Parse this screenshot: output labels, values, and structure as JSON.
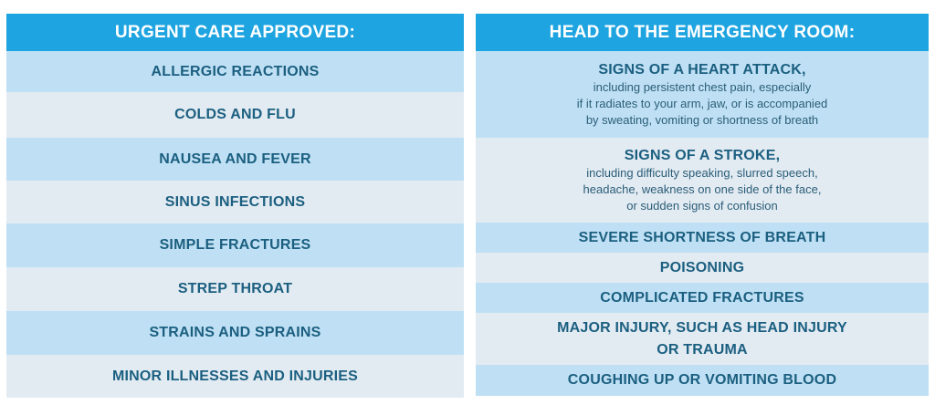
{
  "urgent": {
    "header": "URGENT CARE APPROVED:",
    "items": [
      {
        "label": "ALLERGIC REACTIONS"
      },
      {
        "label": "COLDS AND FLU"
      },
      {
        "label": "NAUSEA AND FEVER"
      },
      {
        "label": "SINUS INFECTIONS"
      },
      {
        "label": "SIMPLE FRACTURES"
      },
      {
        "label": "STREP THROAT"
      },
      {
        "label": "STRAINS AND SPRAINS"
      },
      {
        "label": "MINOR ILLNESSES AND INJURIES"
      }
    ]
  },
  "emergency": {
    "header": "HEAD TO THE EMERGENCY ROOM:",
    "items": [
      {
        "label": "SIGNS OF A HEART ATTACK,",
        "desc": [
          "including persistent chest pain, especially",
          "if it radiates to your arm, jaw, or is accompanied",
          "by sweating, vomiting  or shortness of breath"
        ]
      },
      {
        "label": "SIGNS OF A STROKE,",
        "desc": [
          "including difficulty speaking, slurred speech,",
          "headache, weakness on one side of the face,",
          "or sudden signs of confusion"
        ]
      },
      {
        "label": "SEVERE SHORTNESS OF BREATH"
      },
      {
        "label": "POISONING"
      },
      {
        "label": "COMPLICATED FRACTURES"
      },
      {
        "label": "MAJOR INJURY, SUCH AS HEAD INJURY",
        "label2": "OR TRAUMA"
      },
      {
        "label": "COUGHING UP OR VOMITING BLOOD"
      }
    ]
  },
  "colors": {
    "header_bg": "#1ea4e0",
    "row_blue": "#bfe0f4",
    "row_gray": "#e3ebf2",
    "text": "#1b5f80"
  }
}
